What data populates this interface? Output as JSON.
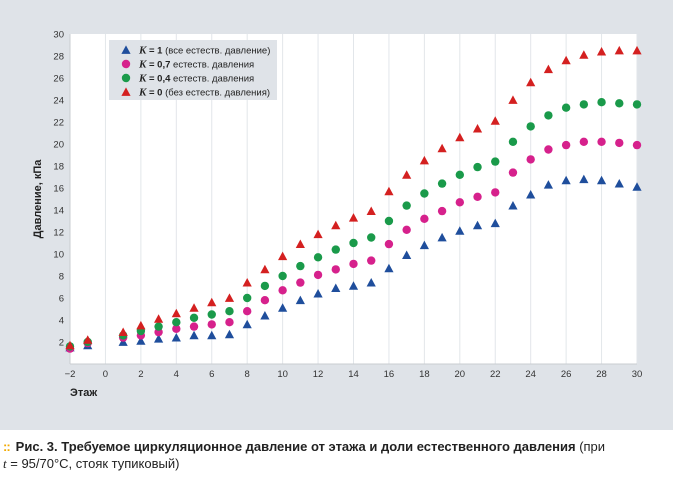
{
  "chart_data": {
    "type": "scatter",
    "xlabel": "Этаж",
    "ylabel": "Давление, кПа",
    "xlim": [
      -2,
      30
    ],
    "ylim": [
      0,
      30
    ],
    "x_ticks": [
      -2,
      0,
      2,
      4,
      6,
      8,
      10,
      12,
      14,
      16,
      18,
      20,
      22,
      24,
      26,
      28,
      30
    ],
    "y_ticks": [
      2,
      4,
      6,
      8,
      10,
      12,
      14,
      16,
      18,
      20,
      22,
      24,
      26,
      28,
      30
    ],
    "x": [
      -2,
      -1,
      1,
      2,
      3,
      4,
      5,
      6,
      7,
      8,
      9,
      10,
      11,
      12,
      13,
      14,
      15,
      16,
      17,
      18,
      19,
      20,
      21,
      22,
      23,
      24,
      25,
      26,
      27,
      28,
      29,
      30
    ],
    "series": [
      {
        "name_prefix": "K",
        "name_value": " = 1",
        "name_suffix": " (все естеств. давление)",
        "color": "#1f4e9c",
        "marker": "triangle",
        "values": [
          1.5,
          1.7,
          2.0,
          2.1,
          2.3,
          2.4,
          2.6,
          2.6,
          2.7,
          3.6,
          4.4,
          5.1,
          5.8,
          6.4,
          6.9,
          7.1,
          7.4,
          8.7,
          9.9,
          10.8,
          11.5,
          12.1,
          12.6,
          12.8,
          14.4,
          15.4,
          16.3,
          16.7,
          16.8,
          16.7,
          16.4,
          16.1
        ]
      },
      {
        "name_prefix": "K",
        "name_value": " = 0,7",
        "name_suffix": " естеств. давления",
        "color": "#d6218c",
        "marker": "circle",
        "values": [
          1.4,
          1.9,
          2.4,
          2.6,
          2.9,
          3.2,
          3.4,
          3.6,
          3.8,
          4.8,
          5.8,
          6.7,
          7.4,
          8.1,
          8.6,
          9.1,
          9.4,
          10.9,
          12.2,
          13.2,
          13.9,
          14.7,
          15.2,
          15.6,
          17.4,
          18.6,
          19.5,
          19.9,
          20.2,
          20.2,
          20.1,
          19.9
        ]
      },
      {
        "name_prefix": "K",
        "name_value": " = 0,4",
        "name_suffix": " естеств. давления",
        "color": "#1a9a4a",
        "marker": "circle",
        "values": [
          1.6,
          2.0,
          2.6,
          3.0,
          3.4,
          3.8,
          4.2,
          4.5,
          4.8,
          6.0,
          7.1,
          8.0,
          8.9,
          9.7,
          10.4,
          11.0,
          11.5,
          13.0,
          14.4,
          15.5,
          16.4,
          17.2,
          17.9,
          18.4,
          20.2,
          21.6,
          22.6,
          23.3,
          23.6,
          23.8,
          23.7,
          23.6
        ]
      },
      {
        "name_prefix": "K",
        "name_value": " = 0",
        "name_suffix": " (без естеств. давления)",
        "color": "#d42020",
        "marker": "triangle",
        "values": [
          1.7,
          2.2,
          2.9,
          3.5,
          4.1,
          4.6,
          5.1,
          5.6,
          6.0,
          7.4,
          8.6,
          9.8,
          10.9,
          11.8,
          12.6,
          13.3,
          13.9,
          15.7,
          17.2,
          18.5,
          19.6,
          20.6,
          21.4,
          22.1,
          24.0,
          25.6,
          26.8,
          27.6,
          28.1,
          28.4,
          28.5,
          28.5
        ]
      }
    ],
    "legend_position": "top-left",
    "grid": "vertical"
  },
  "caption": {
    "label": "Рис. 3.",
    "title": "Требуемое циркуляционное давление от этажа и доли естественного давления",
    "paren_open": " (при",
    "t_symbol": "t",
    "rest": " = 95/70°C, стояк тупиковый)"
  },
  "colors": {
    "panel_bg": "#dfe3e8",
    "plot_bg": "#ffffff",
    "caption_dots": "#f2a900"
  }
}
